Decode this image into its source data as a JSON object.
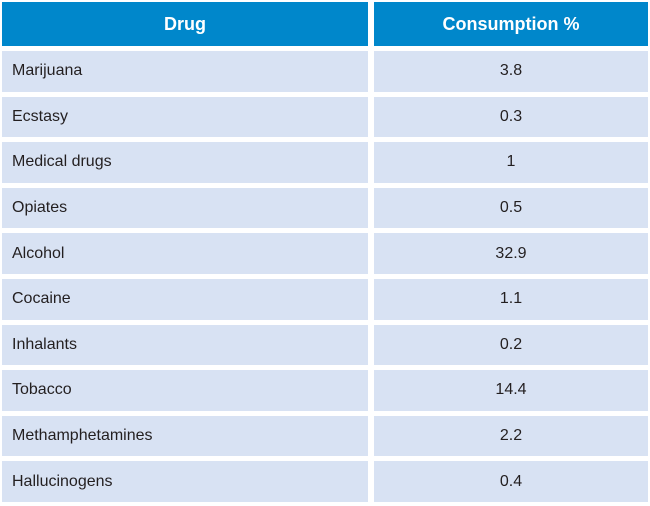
{
  "table": {
    "columns": [
      {
        "label": "Drug"
      },
      {
        "label": "Consumption %"
      }
    ],
    "rows": [
      {
        "drug": "Marijuana",
        "value": "3.8"
      },
      {
        "drug": "Ecstasy",
        "value": "0.3"
      },
      {
        "drug": "Medical drugs",
        "value": "1"
      },
      {
        "drug": "Opiates",
        "value": "0.5"
      },
      {
        "drug": "Alcohol",
        "value": "32.9"
      },
      {
        "drug": "Cocaine",
        "value": "1.1"
      },
      {
        "drug": "Inhalants",
        "value": "0.2"
      },
      {
        "drug": "Tobacco",
        "value": "14.4"
      },
      {
        "drug": "Methamphetamines",
        "value": "2.2"
      },
      {
        "drug": "Hallucinogens",
        "value": "0.4"
      }
    ]
  },
  "colors": {
    "header_bg": "#0087CB",
    "header_text": "#FFFFFF",
    "row_bg": "#D8E2F3",
    "row_text": "#231F20",
    "gap": "#FFFFFF"
  },
  "chart_data": {
    "type": "table",
    "title": "",
    "columns": [
      "Drug",
      "Consumption %"
    ],
    "categories": [
      "Marijuana",
      "Ecstasy",
      "Medical drugs",
      "Opiates",
      "Alcohol",
      "Cocaine",
      "Inhalants",
      "Tobacco",
      "Methamphetamines",
      "Hallucinogens"
    ],
    "values": [
      3.8,
      0.3,
      1,
      0.5,
      32.9,
      1.1,
      0.2,
      14.4,
      2.2,
      0.4
    ]
  }
}
